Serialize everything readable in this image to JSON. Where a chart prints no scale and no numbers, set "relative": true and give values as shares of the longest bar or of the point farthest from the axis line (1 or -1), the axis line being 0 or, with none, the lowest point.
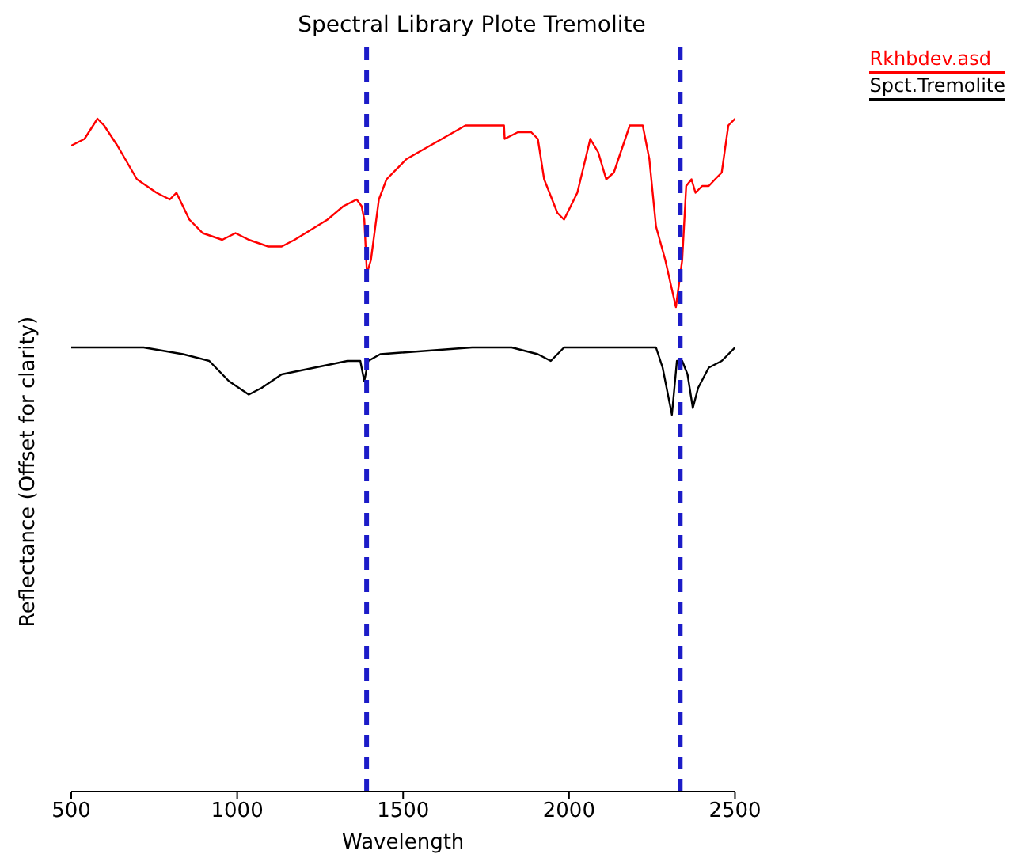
{
  "chart_data": {
    "type": "line",
    "title": "Spectral Library Plote Tremolite",
    "xlabel": "Wavelength",
    "ylabel": "Reflectance (Offset for clarity)",
    "relative": true,
    "xlim": [
      500,
      2500
    ],
    "xticks": [
      500,
      1000,
      1500,
      2000,
      2500
    ],
    "legend": "top right",
    "grid": false,
    "marker": "none",
    "line_style": "solid",
    "series": [
      {
        "name": "Rkhbdev.asd",
        "color": "#ff0000",
        "x": [
          500,
          540,
          579,
          599,
          639,
          698,
          757,
          797,
          817,
          856,
          896,
          955,
          995,
          1035,
          1094,
          1134,
          1173,
          1272,
          1320,
          1360,
          1375,
          1383,
          1391,
          1403,
          1427,
          1450,
          1510,
          1688,
          1804,
          1806,
          1846,
          1886,
          1906,
          1925,
          1965,
          1985,
          2025,
          2064,
          2088,
          2112,
          2135,
          2183,
          2222,
          2242,
          2262,
          2290,
          2322,
          2341,
          2353,
          2369,
          2381,
          2401,
          2421,
          2440,
          2460,
          2480,
          2500
        ],
        "values": [
          0.96,
          0.97,
          1.0,
          0.99,
          0.96,
          0.91,
          0.89,
          0.88,
          0.89,
          0.85,
          0.83,
          0.82,
          0.83,
          0.82,
          0.81,
          0.81,
          0.82,
          0.85,
          0.87,
          0.88,
          0.87,
          0.85,
          0.77,
          0.79,
          0.88,
          0.91,
          0.94,
          0.99,
          0.99,
          0.97,
          0.98,
          0.98,
          0.97,
          0.91,
          0.86,
          0.85,
          0.89,
          0.97,
          0.95,
          0.91,
          0.92,
          0.99,
          0.99,
          0.94,
          0.84,
          0.79,
          0.72,
          0.79,
          0.9,
          0.91,
          0.89,
          0.9,
          0.9,
          0.91,
          0.92,
          0.99,
          1.0
        ]
      },
      {
        "name": "Spct.Tremolite",
        "color": "#000000",
        "x": [
          500,
          718,
          837,
          916,
          975,
          1035,
          1074,
          1134,
          1233,
          1332,
          1371,
          1383,
          1395,
          1431,
          1708,
          1827,
          1906,
          1945,
          1985,
          2262,
          2282,
          2310,
          2325,
          2341,
          2357,
          2373,
          2389,
          2421,
          2460,
          2500
        ],
        "values": [
          0.66,
          0.66,
          0.65,
          0.64,
          0.61,
          0.59,
          0.6,
          0.62,
          0.63,
          0.64,
          0.64,
          0.61,
          0.64,
          0.65,
          0.66,
          0.66,
          0.65,
          0.64,
          0.66,
          0.66,
          0.63,
          0.56,
          0.64,
          0.64,
          0.62,
          0.57,
          0.6,
          0.63,
          0.64,
          0.66
        ]
      }
    ],
    "ref_lines": [
      {
        "axis": "x",
        "value": 1390,
        "color": "#1c1cc8",
        "line_style": "dashed"
      },
      {
        "axis": "x",
        "value": 2335,
        "color": "#1c1cc8",
        "line_style": "dashed"
      }
    ]
  }
}
